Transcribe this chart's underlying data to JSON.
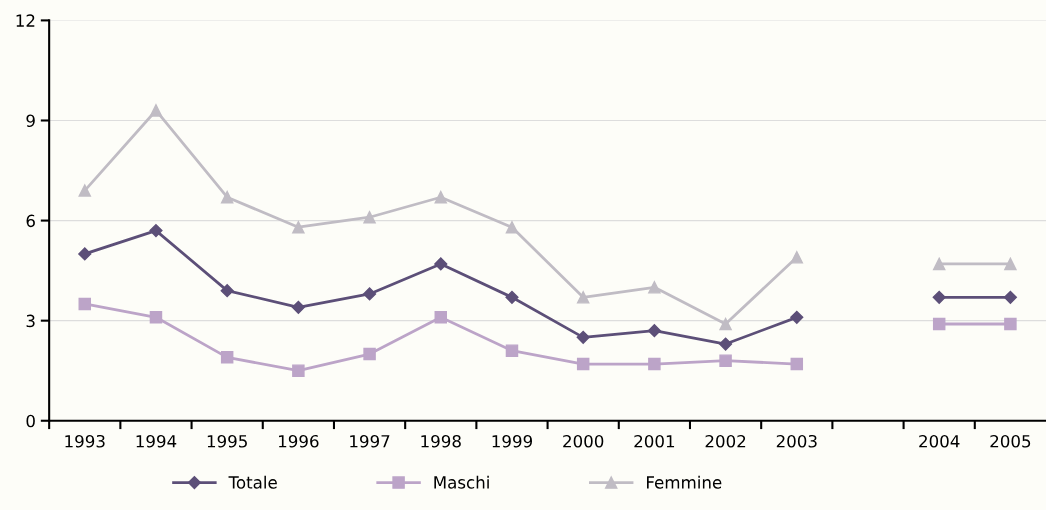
{
  "chart_data": {
    "type": "line",
    "categories": [
      "1993",
      "1994",
      "1995",
      "1996",
      "1997",
      "1998",
      "1999",
      "2000",
      "2001",
      "2002",
      "2003",
      null,
      "2004",
      "2005"
    ],
    "series": [
      {
        "name": "Totale",
        "color": "#5c4f78",
        "marker": "diamond",
        "values": [
          5.0,
          5.7,
          3.9,
          3.4,
          3.8,
          4.7,
          3.7,
          2.5,
          2.7,
          2.3,
          3.1,
          null,
          3.7,
          3.7
        ]
      },
      {
        "name": "Maschi",
        "color": "#bca4c8",
        "marker": "square",
        "values": [
          3.5,
          3.1,
          1.9,
          1.5,
          2.0,
          3.1,
          2.1,
          1.7,
          1.7,
          1.8,
          1.7,
          null,
          2.9,
          2.9
        ]
      },
      {
        "name": "Femmine",
        "color": "#c0bcc4",
        "marker": "triangle",
        "values": [
          6.9,
          9.3,
          6.7,
          5.8,
          6.1,
          6.7,
          5.8,
          3.7,
          4.0,
          2.9,
          4.9,
          null,
          4.7,
          4.7
        ]
      }
    ],
    "ylim": [
      0,
      12
    ],
    "yticks": [
      0,
      3,
      6,
      9,
      12
    ],
    "grid": "y",
    "legend": "bottom",
    "line_style": "solid"
  }
}
